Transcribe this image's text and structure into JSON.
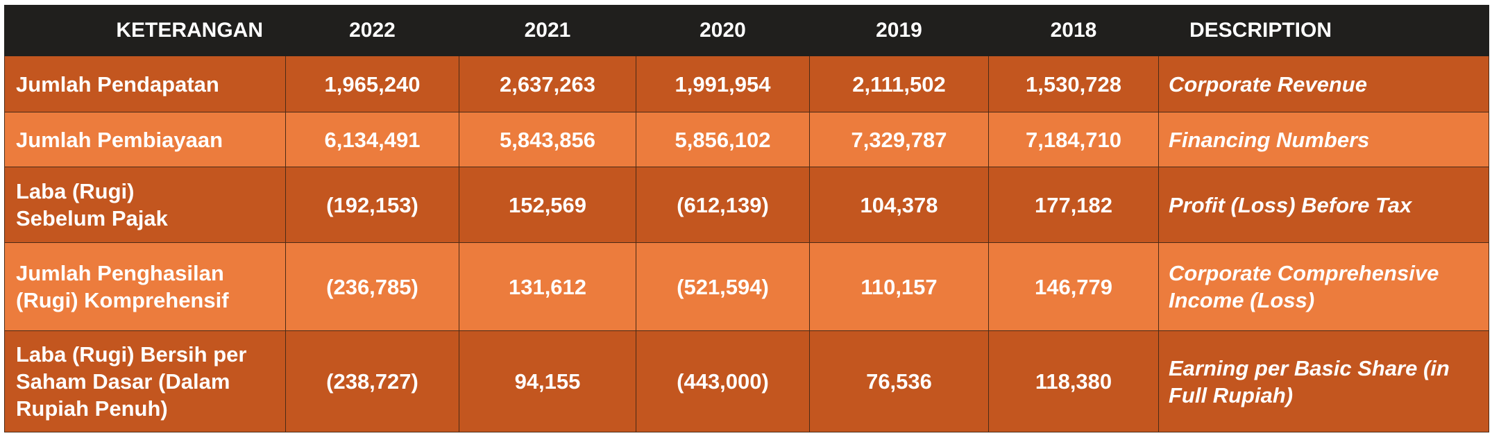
{
  "header": {
    "keterangan": "KETERANGAN",
    "years": [
      "2022",
      "2021",
      "2020",
      "2019",
      "2018"
    ],
    "description": "DESCRIPTION"
  },
  "rows": [
    {
      "label": [
        "Jumlah Pendapatan"
      ],
      "values": [
        "1,965,240",
        "2,637,263",
        "1,991,954",
        "2,111,502",
        "1,530,728"
      ],
      "description": [
        "Corporate Revenue"
      ]
    },
    {
      "label": [
        "Jumlah Pembiayaan"
      ],
      "values": [
        "6,134,491",
        "5,843,856",
        "5,856,102",
        "7,329,787",
        "7,184,710"
      ],
      "description": [
        "Financing Numbers"
      ]
    },
    {
      "label": [
        "Laba (Rugi)",
        "Sebelum Pajak"
      ],
      "values": [
        "(192,153)",
        "152,569",
        "(612,139)",
        "104,378",
        "177,182"
      ],
      "description": [
        "Profit (Loss) Before Tax"
      ]
    },
    {
      "label": [
        "Jumlah Penghasilan",
        "(Rugi) Komprehensif"
      ],
      "values": [
        "(236,785)",
        "131,612",
        "(521,594)",
        "110,157",
        "146,779"
      ],
      "description": [
        "Corporate Comprehensive",
        "Income (Loss)"
      ]
    },
    {
      "label": [
        "Laba (Rugi) Bersih per",
        "Saham Dasar (Dalam",
        "Rupiah Penuh)"
      ],
      "values": [
        "(238,727)",
        "94,155",
        "(443,000)",
        "76,536",
        "118,380"
      ],
      "description": [
        "Earning per Basic Share (in",
        "Full Rupiah)"
      ]
    }
  ],
  "colors": {
    "header_bg": "#201f1d",
    "row_dark": "#c3561f",
    "row_light": "#ec7c3d",
    "text": "#ffffff"
  }
}
